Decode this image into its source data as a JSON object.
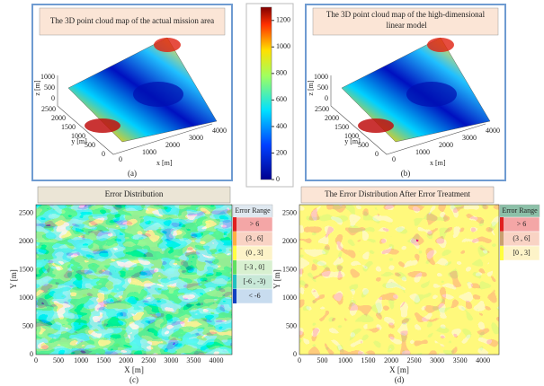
{
  "panels": [
    {
      "title": "The 3D point cloud map of the actual mission area",
      "caption": "(a)",
      "z_label": "z [m]",
      "y_label": "y [m]",
      "x_label": "x [m]",
      "z_ticks": [
        "1000",
        "500",
        "0"
      ],
      "y_ticks": [
        "2500",
        "2000",
        "1500",
        "1000",
        "500",
        "0"
      ],
      "x_ticks": [
        "0",
        "1000",
        "2000",
        "3000",
        "4000"
      ]
    },
    {
      "title": "The 3D point cloud map of the high-dimensional linear model",
      "caption": "(b)",
      "z_label": "z [m]",
      "y_label": "y [m]",
      "x_label": "x [m]",
      "z_ticks": [
        "1000",
        "500",
        "0"
      ],
      "y_ticks": [
        "2500",
        "2000",
        "1500",
        "1000",
        "500",
        "0"
      ],
      "x_ticks": [
        "0",
        "1000",
        "2000",
        "3000",
        "4000"
      ]
    }
  ],
  "colorbar": {
    "ticks": [
      "1200",
      "1000",
      "800",
      "600",
      "400",
      "200",
      "0"
    ]
  },
  "maps": [
    {
      "title": "Error Distribution",
      "caption": "(c)",
      "x_label": "X [m]",
      "y_label": "Y [m]",
      "x_ticks": [
        "0",
        "500",
        "1000",
        "1500",
        "2000",
        "2500",
        "3000",
        "3500",
        "4000"
      ],
      "y_ticks": [
        "0",
        "500",
        "1000",
        "1500",
        "2000",
        "2500"
      ],
      "legend_title": "Error Range",
      "legend": [
        "> 6",
        "(3 , 6]",
        "(0 , 3]",
        "[-3 , 0]",
        "[-6 , -3)",
        "< -6"
      ]
    },
    {
      "title": "The Error Distribution After Error Treatment",
      "caption": "(d)",
      "x_label": "X [m]",
      "y_label": "Y [m]",
      "x_ticks": [
        "0",
        "500",
        "1000",
        "1500",
        "2000",
        "2500",
        "3000",
        "3500",
        "4000"
      ],
      "y_ticks": [
        "0",
        "500",
        "1000",
        "1500",
        "2000",
        "2500"
      ],
      "legend_title": "Error Range",
      "legend": [
        "> 6",
        "(3 , 6]",
        "[0 , 3]"
      ]
    }
  ]
}
